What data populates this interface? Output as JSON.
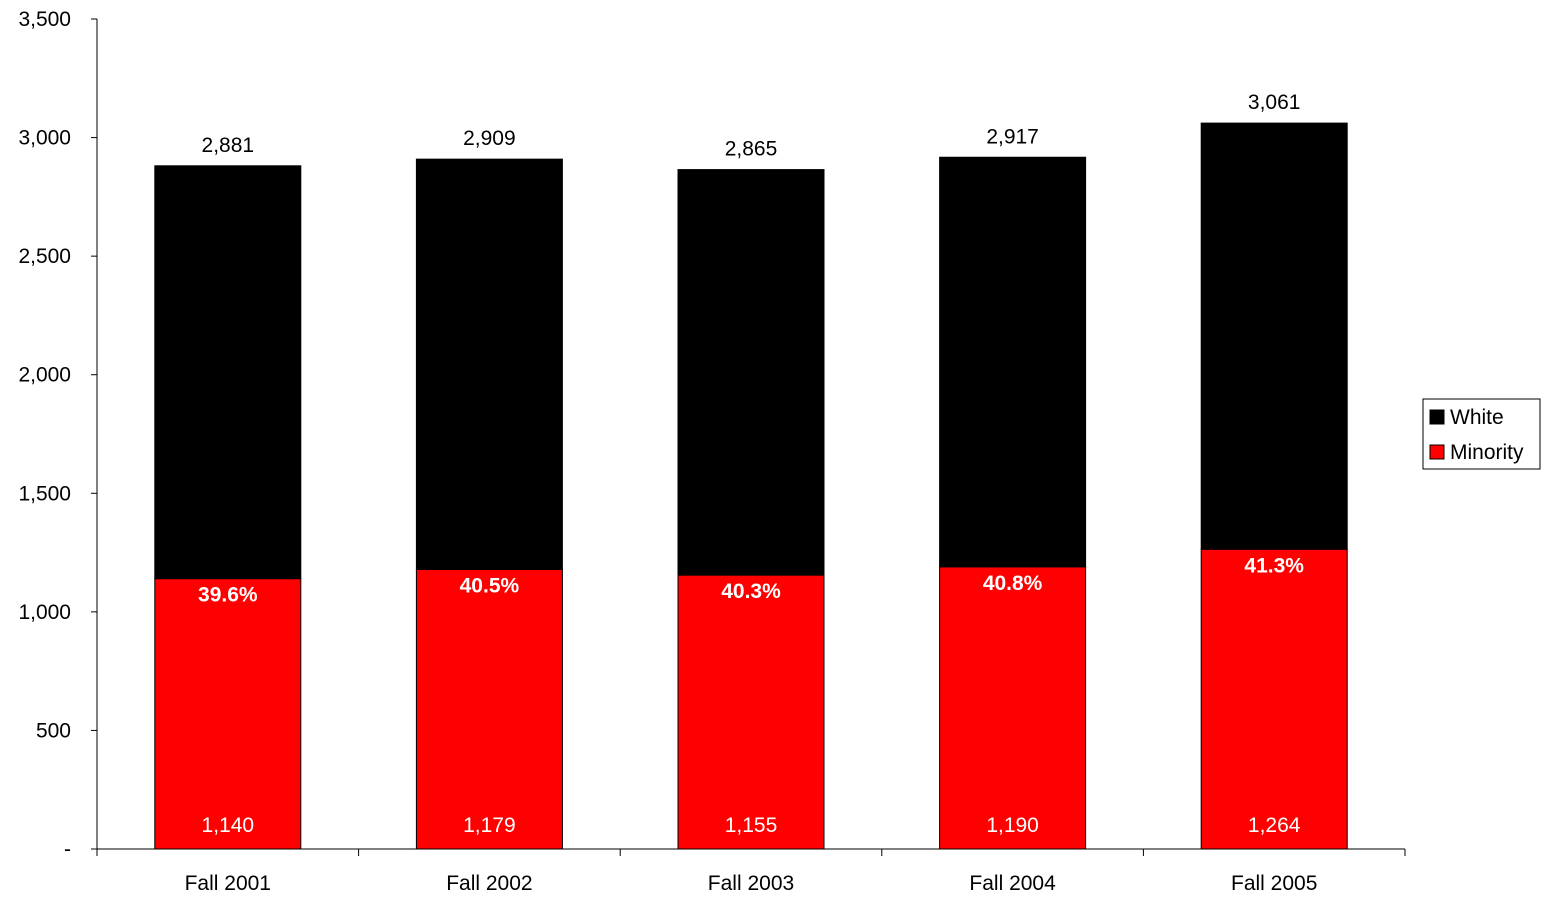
{
  "chart_data": {
    "type": "bar",
    "stacked": true,
    "categories": [
      "Fall 2001",
      "Fall 2002",
      "Fall 2003",
      "Fall 2004",
      "Fall 2005"
    ],
    "series": [
      {
        "name": "Minority",
        "color": "#ff0000",
        "values": [
          1140,
          1179,
          1155,
          1190,
          1264
        ],
        "labels": [
          "1,140",
          "1,179",
          "1,155",
          "1,190",
          "1,264"
        ],
        "percent_labels": [
          "39.6%",
          "40.5%",
          "40.3%",
          "40.8%",
          "41.3%"
        ]
      },
      {
        "name": "White",
        "color": "#000000",
        "values": [
          1741,
          1730,
          1710,
          1727,
          1797
        ]
      }
    ],
    "totals": [
      2881,
      2909,
      2865,
      2917,
      3061
    ],
    "total_labels": [
      "2,881",
      "2,909",
      "2,865",
      "2,917",
      "3,061"
    ],
    "ylim": [
      0,
      3500
    ],
    "yticks": [
      0,
      500,
      1000,
      1500,
      2000,
      2500,
      3000,
      3500
    ],
    "ytick_labels": [
      "-",
      "500",
      "1,000",
      "1,500",
      "2,000",
      "2,500",
      "3,000",
      "3,500"
    ],
    "title": "",
    "xlabel": "",
    "ylabel": "",
    "grid": false,
    "legend": {
      "position": "right",
      "entries": [
        {
          "name": "White",
          "color": "#000000"
        },
        {
          "name": "Minority",
          "color": "#ff0000"
        }
      ]
    }
  }
}
